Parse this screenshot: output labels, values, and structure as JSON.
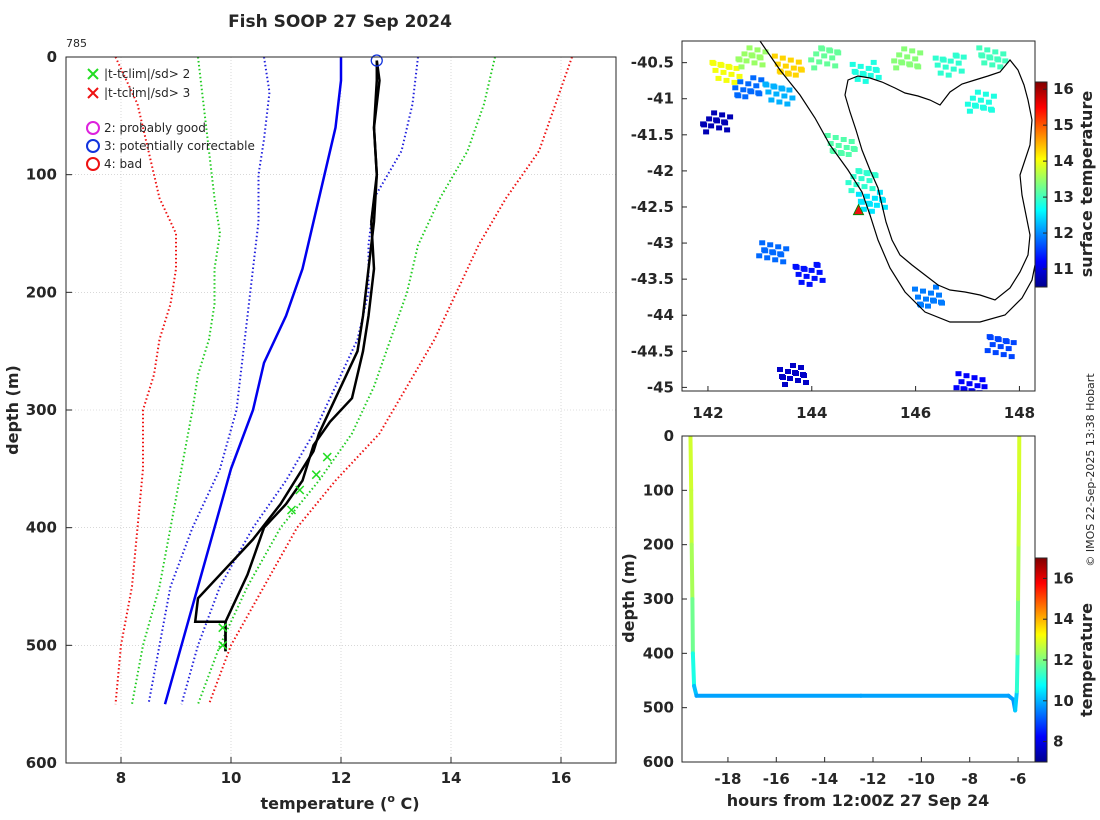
{
  "colors": {
    "background": "#ffffff",
    "axis": "#262626",
    "grid": "#c0c0c0",
    "profile": "#000000",
    "clim_mean": "#0000ee",
    "clim_1sd": "#2222dd",
    "clim_2sd": "#22cc22",
    "clim_3sd": "#ee1111"
  },
  "credit": "© IMOS 22-Sep-2025 13:38 Hobart",
  "chart_data": [
    {
      "id": "profile",
      "type": "line",
      "title": "Fish SOOP 27 Sep 2024",
      "profile_id": "785",
      "xlabel": "temperature (° C)",
      "xlabel_main": "temperature (",
      "xlabel_sup": "o",
      "xlabel_tail": " C)",
      "ylabel": "depth (m)",
      "xlim": [
        7,
        17
      ],
      "ylim": [
        0,
        600
      ],
      "y_reversed": true,
      "grid": true,
      "xticks": [
        8,
        10,
        12,
        14,
        16
      ],
      "yticks": [
        0,
        100,
        200,
        300,
        400,
        500,
        600
      ],
      "legend_position": "top-left",
      "legend": [
        {
          "marker": "x",
          "color": "#22dd22",
          "label": "|t-tclim|/sd> 2"
        },
        {
          "marker": "x",
          "color": "#ee1111",
          "label": "|t-tclim|/sd> 3"
        },
        {
          "marker": "o",
          "color": "#dd22dd",
          "label": "2: probably good"
        },
        {
          "marker": "o",
          "color": "#1133dd",
          "label": "3: potentially correctable"
        },
        {
          "marker": "o",
          "color": "#ee1111",
          "label": "4: bad"
        }
      ],
      "series": [
        {
          "name": "climatology mean",
          "style": "solid",
          "color": "#0000ee",
          "points": [
            [
              12.0,
              0
            ],
            [
              12.0,
              20
            ],
            [
              11.9,
              60
            ],
            [
              11.6,
              120
            ],
            [
              11.3,
              180
            ],
            [
              11.0,
              220
            ],
            [
              10.6,
              260
            ],
            [
              10.4,
              300
            ],
            [
              10.0,
              350
            ],
            [
              9.7,
              400
            ],
            [
              9.4,
              450
            ],
            [
              9.1,
              500
            ],
            [
              8.8,
              550
            ]
          ]
        },
        {
          "name": "mean - 1 sd",
          "style": "dotted",
          "color": "#2222dd",
          "points": [
            [
              10.6,
              0
            ],
            [
              10.7,
              30
            ],
            [
              10.6,
              70
            ],
            [
              10.5,
              100
            ],
            [
              10.5,
              140
            ],
            [
              10.4,
              180
            ],
            [
              10.3,
              220
            ],
            [
              10.2,
              260
            ],
            [
              10.1,
              300
            ],
            [
              9.8,
              350
            ],
            [
              9.3,
              400
            ],
            [
              8.9,
              450
            ],
            [
              8.7,
              500
            ],
            [
              8.5,
              550
            ]
          ]
        },
        {
          "name": "mean + 1 sd",
          "style": "dotted",
          "color": "#2222dd",
          "points": [
            [
              13.4,
              0
            ],
            [
              13.3,
              40
            ],
            [
              13.1,
              80
            ],
            [
              12.6,
              120
            ],
            [
              12.5,
              160
            ],
            [
              12.5,
              200
            ],
            [
              12.3,
              240
            ],
            [
              11.9,
              280
            ],
            [
              11.5,
              320
            ],
            [
              11.0,
              360
            ],
            [
              10.4,
              400
            ],
            [
              9.8,
              450
            ],
            [
              9.4,
              500
            ],
            [
              9.1,
              550
            ]
          ]
        },
        {
          "name": "mean - 2 sd",
          "style": "dotted",
          "color": "#22cc22",
          "points": [
            [
              9.4,
              0
            ],
            [
              9.5,
              40
            ],
            [
              9.6,
              80
            ],
            [
              9.7,
              120
            ],
            [
              9.8,
              150
            ],
            [
              9.7,
              180
            ],
            [
              9.7,
              210
            ],
            [
              9.6,
              240
            ],
            [
              9.4,
              270
            ],
            [
              9.3,
              300
            ],
            [
              9.1,
              350
            ],
            [
              8.9,
              400
            ],
            [
              8.7,
              450
            ],
            [
              8.4,
              500
            ],
            [
              8.2,
              550
            ]
          ]
        },
        {
          "name": "mean + 2 sd",
          "style": "dotted",
          "color": "#22cc22",
          "points": [
            [
              14.8,
              0
            ],
            [
              14.6,
              40
            ],
            [
              14.3,
              80
            ],
            [
              13.8,
              120
            ],
            [
              13.4,
              160
            ],
            [
              13.2,
              200
            ],
            [
              12.9,
              240
            ],
            [
              12.6,
              280
            ],
            [
              12.2,
              320
            ],
            [
              11.6,
              360
            ],
            [
              10.9,
              400
            ],
            [
              10.3,
              450
            ],
            [
              9.8,
              500
            ],
            [
              9.4,
              550
            ]
          ]
        },
        {
          "name": "mean - 3 sd",
          "style": "dotted",
          "color": "#ee1111",
          "points": [
            [
              7.9,
              0
            ],
            [
              8.3,
              40
            ],
            [
              8.5,
              80
            ],
            [
              8.7,
              120
            ],
            [
              9.0,
              150
            ],
            [
              9.0,
              180
            ],
            [
              8.9,
              210
            ],
            [
              8.7,
              240
            ],
            [
              8.6,
              270
            ],
            [
              8.4,
              300
            ],
            [
              8.4,
              350
            ],
            [
              8.3,
              400
            ],
            [
              8.2,
              450
            ],
            [
              8.0,
              500
            ],
            [
              7.9,
              550
            ]
          ]
        },
        {
          "name": "mean + 3 sd",
          "style": "dotted",
          "color": "#ee1111",
          "points": [
            [
              16.2,
              0
            ],
            [
              15.9,
              40
            ],
            [
              15.6,
              80
            ],
            [
              15.0,
              120
            ],
            [
              14.5,
              160
            ],
            [
              14.1,
              200
            ],
            [
              13.7,
              240
            ],
            [
              13.2,
              280
            ],
            [
              12.7,
              320
            ],
            [
              11.9,
              360
            ],
            [
              11.2,
              400
            ],
            [
              10.6,
              450
            ],
            [
              10.0,
              500
            ],
            [
              9.6,
              550
            ]
          ]
        },
        {
          "name": "profile (down)",
          "style": "solid",
          "color": "#000000",
          "points": [
            [
              12.65,
              3
            ],
            [
              12.7,
              20
            ],
            [
              12.6,
              60
            ],
            [
              12.65,
              100
            ],
            [
              12.55,
              140
            ],
            [
              12.6,
              180
            ],
            [
              12.5,
              220
            ],
            [
              12.4,
              250
            ],
            [
              12.3,
              270
            ],
            [
              12.2,
              290
            ],
            [
              11.8,
              310
            ],
            [
              11.5,
              330
            ],
            [
              11.3,
              360
            ],
            [
              11.0,
              380
            ],
            [
              10.6,
              400
            ],
            [
              10.3,
              440
            ],
            [
              10.0,
              470
            ],
            [
              9.9,
              480
            ],
            [
              9.9,
              500
            ],
            [
              9.9,
              505
            ]
          ]
        },
        {
          "name": "profile (up)",
          "style": "solid",
          "color": "#000000",
          "points": [
            [
              9.9,
              505
            ],
            [
              9.9,
              480
            ],
            [
              9.35,
              480
            ],
            [
              9.4,
              460
            ],
            [
              9.8,
              440
            ],
            [
              10.4,
              410
            ],
            [
              10.9,
              380
            ],
            [
              11.3,
              350
            ],
            [
              11.5,
              335
            ],
            [
              11.6,
              320
            ],
            [
              11.9,
              290
            ],
            [
              12.3,
              250
            ],
            [
              12.4,
              220
            ],
            [
              12.5,
              180
            ],
            [
              12.6,
              140
            ],
            [
              12.65,
              100
            ],
            [
              12.6,
              60
            ],
            [
              12.65,
              20
            ],
            [
              12.65,
              3
            ]
          ]
        }
      ],
      "flag_points_x": [
        {
          "temperature": 11.75,
          "depth": 340,
          "color": "#22dd22"
        },
        {
          "temperature": 11.55,
          "depth": 355,
          "color": "#22dd22"
        },
        {
          "temperature": 11.25,
          "depth": 368,
          "color": "#22dd22"
        },
        {
          "temperature": 11.1,
          "depth": 385,
          "color": "#22dd22"
        },
        {
          "temperature": 9.85,
          "depth": 485,
          "color": "#22dd22"
        },
        {
          "temperature": 9.85,
          "depth": 500,
          "color": "#22dd22"
        }
      ],
      "flag_points_o": [
        {
          "temperature": 12.65,
          "depth": 3,
          "color": "#1133dd"
        }
      ]
    },
    {
      "id": "map",
      "type": "heatmap",
      "title": "",
      "xlim": [
        141.5,
        148.3
      ],
      "ylim": [
        -45.05,
        -40.2
      ],
      "xticks": [
        142,
        144,
        146,
        148
      ],
      "yticks": [
        -40.5,
        -41,
        -41.5,
        -42,
        -42.5,
        -43,
        -43.5,
        -44,
        -44.5,
        -45
      ],
      "colorbar_label": "surface temperature",
      "colorbar_range": [
        10.5,
        16.2
      ],
      "colorbar_ticks": [
        11,
        12,
        13,
        14,
        15,
        16
      ],
      "marker": {
        "lon": 144.9,
        "lat": -42.55,
        "shape": "triangle",
        "color": "#ee1111"
      },
      "sst_patches": [
        {
          "lon": 142.3,
          "lat": -40.6,
          "value": 14.0
        },
        {
          "lon": 142.8,
          "lat": -40.4,
          "value": 13.5
        },
        {
          "lon": 143.5,
          "lat": -40.5,
          "value": 14.3
        },
        {
          "lon": 144.2,
          "lat": -40.4,
          "value": 13.2
        },
        {
          "lon": 145.0,
          "lat": -40.6,
          "value": 12.8
        },
        {
          "lon": 145.8,
          "lat": -40.4,
          "value": 13.4
        },
        {
          "lon": 146.6,
          "lat": -40.5,
          "value": 12.9
        },
        {
          "lon": 147.4,
          "lat": -40.4,
          "value": 13.0
        },
        {
          "lon": 142.7,
          "lat": -40.8,
          "value": 11.8
        },
        {
          "lon": 143.3,
          "lat": -40.9,
          "value": 12.2
        },
        {
          "lon": 142.1,
          "lat": -41.3,
          "value": 10.8
        },
        {
          "lon": 144.5,
          "lat": -41.6,
          "value": 13.1
        },
        {
          "lon": 144.9,
          "lat": -42.1,
          "value": 12.9
        },
        {
          "lon": 145.1,
          "lat": -42.4,
          "value": 12.5
        },
        {
          "lon": 147.2,
          "lat": -41.0,
          "value": 12.8
        },
        {
          "lon": 143.9,
          "lat": -43.4,
          "value": 11.3
        },
        {
          "lon": 143.2,
          "lat": -43.1,
          "value": 11.8
        },
        {
          "lon": 146.2,
          "lat": -43.7,
          "value": 11.9
        },
        {
          "lon": 147.6,
          "lat": -44.4,
          "value": 11.6
        },
        {
          "lon": 143.6,
          "lat": -44.8,
          "value": 10.9
        },
        {
          "lon": 147.0,
          "lat": -44.9,
          "value": 11.2
        }
      ]
    },
    {
      "id": "time",
      "type": "scatter",
      "xlabel": "hours from 12:00Z 27 Sep 24",
      "ylabel": "depth (m)",
      "xlim": [
        -19.9,
        -5.3
      ],
      "ylim": [
        0,
        600
      ],
      "y_reversed": true,
      "xticks": [
        -18,
        -16,
        -14,
        -12,
        -10,
        -8,
        -6
      ],
      "yticks": [
        0,
        100,
        200,
        300,
        400,
        500,
        600
      ],
      "colorbar_label": "temperature",
      "colorbar_range": [
        7,
        17
      ],
      "colorbar_ticks": [
        8,
        10,
        12,
        14,
        16
      ],
      "segments": [
        {
          "name": "descent",
          "points": [
            [
              -19.55,
              0,
              12.8
            ],
            [
              -19.52,
              100,
              12.8
            ],
            [
              -19.5,
              200,
              12.6
            ],
            [
              -19.47,
              300,
              12.2
            ],
            [
              -19.45,
              400,
              11.5
            ],
            [
              -19.4,
              460,
              10.5
            ],
            [
              -19.3,
              478,
              9.8
            ]
          ]
        },
        {
          "name": "bottom",
          "points": [
            [
              -19.3,
              478,
              9.85
            ],
            [
              -12.5,
              478,
              9.85
            ],
            [
              -6.4,
              478,
              9.85
            ]
          ]
        },
        {
          "name": "ascent",
          "points": [
            [
              -6.4,
              478,
              9.85
            ],
            [
              -6.2,
              485,
              9.8
            ],
            [
              -6.12,
              505,
              9.7
            ],
            [
              -6.05,
              470,
              10.8
            ],
            [
              -6.02,
              400,
              11.6
            ],
            [
              -6.0,
              300,
              12.3
            ],
            [
              -5.98,
              200,
              12.6
            ],
            [
              -5.96,
              100,
              12.8
            ],
            [
              -5.95,
              0,
              12.9
            ]
          ]
        }
      ]
    }
  ]
}
